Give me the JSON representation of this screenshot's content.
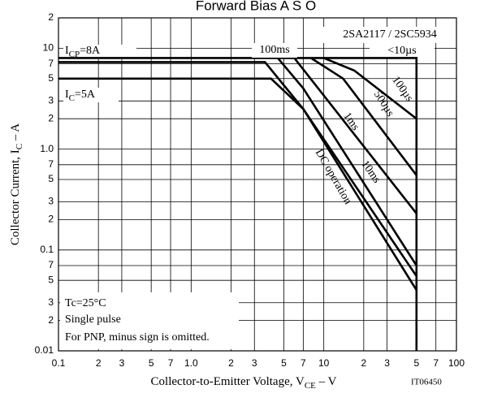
{
  "chart_data": {
    "type": "line",
    "title": "Forward Bias A S O",
    "log_x": true,
    "log_y": true,
    "grid": true,
    "xlim": [
      0.1,
      100
    ],
    "ylim": [
      0.01,
      20
    ],
    "xticks": [
      0.1,
      {
        "value": 0.2,
        "label": "2"
      },
      {
        "value": 0.3,
        "label": "3"
      },
      {
        "value": 0.5,
        "label": "5"
      },
      {
        "value": 0.7,
        "label": "7"
      },
      {
        "value": 1,
        "label": "1.0"
      },
      2,
      3,
      5,
      7,
      10,
      {
        "value": 20,
        "label": "2"
      },
      {
        "value": 30,
        "label": "3"
      },
      {
        "value": 50,
        "label": "5"
      },
      {
        "value": 70,
        "label": "7"
      },
      100
    ],
    "yticks": [
      0.01,
      {
        "value": 0.02,
        "label": "2"
      },
      {
        "value": 0.03,
        "label": "3"
      },
      {
        "value": 0.05,
        "label": "5"
      },
      {
        "value": 0.07,
        "label": "7"
      },
      0.1,
      {
        "value": 0.2,
        "label": "2"
      },
      {
        "value": 0.3,
        "label": "3"
      },
      {
        "value": 0.5,
        "label": "5"
      },
      {
        "value": 0.7,
        "label": "7"
      },
      {
        "value": 1,
        "label": "1.0"
      },
      2,
      3,
      5,
      7,
      10,
      {
        "value": 20,
        "label": "2"
      }
    ],
    "x_label": {
      "main": "Collector-to-Emitter Voltage, V",
      "sub": "CE",
      "rest": " – V"
    },
    "y_label": {
      "main": "Collector Current, I",
      "sub": "C",
      "rest": " – A"
    },
    "color": "#000000",
    "series": [
      {
        "name": "<10µs",
        "x": [
          0.1,
          50,
          50
        ],
        "values": [
          8,
          8,
          0.01
        ]
      },
      {
        "name": "100µs",
        "x": [
          10,
          17,
          50
        ],
        "values": [
          8,
          6,
          2
        ]
      },
      {
        "name": "500µs",
        "x": [
          8,
          14,
          50
        ],
        "values": [
          8,
          5,
          0.55
        ]
      },
      {
        "name": "1ms",
        "x": [
          6,
          50
        ],
        "values": [
          8,
          0.23
        ]
      },
      {
        "name": "10ms",
        "x": [
          4.5,
          7,
          50
        ],
        "values": [
          8,
          4,
          0.07
        ]
      },
      {
        "name": "100ms",
        "x": [
          0.1,
          3.6,
          7,
          50
        ],
        "values": [
          7.3,
          7.3,
          2.5,
          0.055
        ]
      },
      {
        "name": "DC operation",
        "x": [
          0.1,
          4,
          7,
          50
        ],
        "values": [
          5,
          5,
          2.5,
          0.04
        ]
      }
    ],
    "annotations": {
      "device": "2SA2117 / 2SC5934",
      "icp": {
        "main": "I",
        "sub": "CP",
        "rest": "=8A"
      },
      "ic": {
        "main": "I",
        "sub": "C",
        "rest": "=5A"
      },
      "tc": "Tc=25°C",
      "pulse": "Single pulse",
      "pnp": "For PNP, minus sign is omitted.",
      "code": "IT06450"
    }
  }
}
